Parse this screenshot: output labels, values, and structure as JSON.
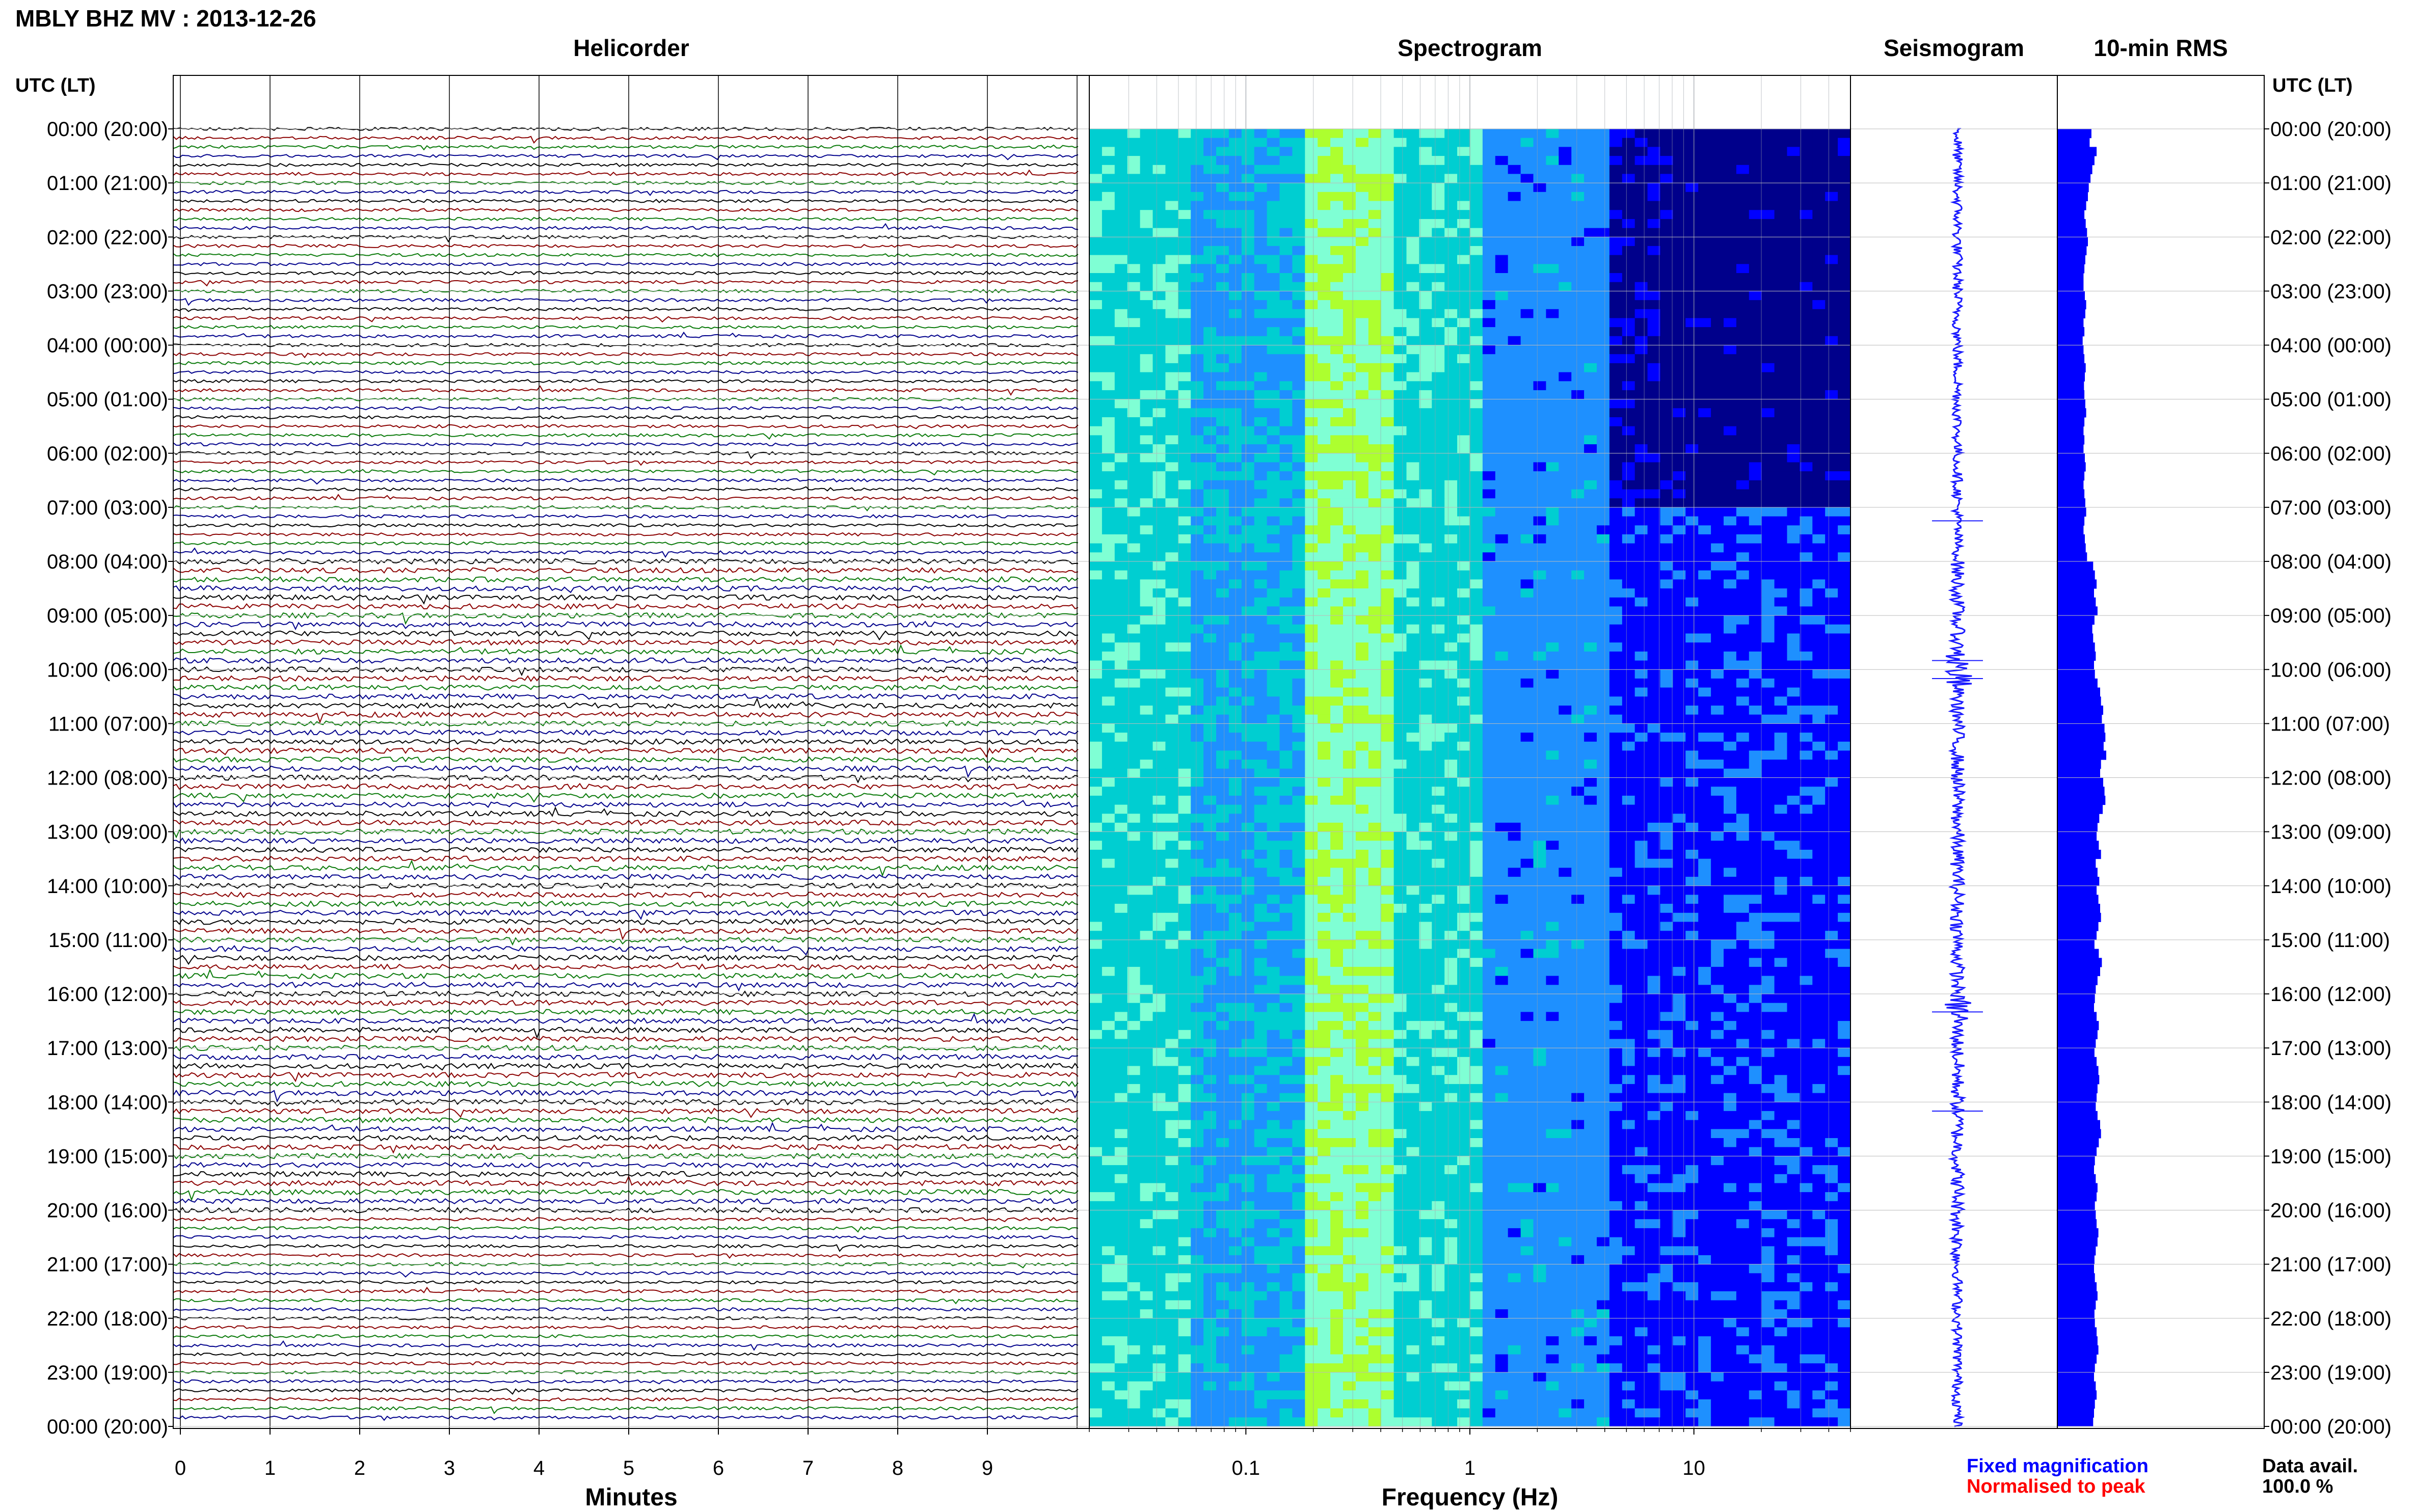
{
  "header": {
    "title": "MBLY BHZ MV : 2013-12-26",
    "utc_label_left": "UTC (LT)",
    "utc_label_right": "UTC (LT)"
  },
  "panels": {
    "helicorder_title": "Helicorder",
    "spectrogram_title": "Spectrogram",
    "seismogram_title": "Seismogram",
    "rms_title": "10-min RMS"
  },
  "legend": {
    "fixed": "Fixed magnification",
    "normalised": "Normalised to peak",
    "data_avail_label": "Data avail.",
    "data_avail_value": "100.0 %"
  },
  "colors": {
    "trace_cycle": [
      "#000000",
      "#8b0000",
      "#0a7a0a",
      "#00008b"
    ],
    "rms_bar": "#0000ff",
    "seismogram": "#1a1aff",
    "fixed_text": "#0000ff",
    "normalised_text": "#ff0000"
  },
  "chart_data": [
    {
      "type": "line",
      "name": "helicorder",
      "title": "Helicorder",
      "xlabel": "Minutes",
      "xlim": [
        0,
        10
      ],
      "x_ticks": [
        "0",
        "1",
        "2",
        "3",
        "4",
        "5",
        "6",
        "7",
        "8",
        "9"
      ],
      "y_labels": [
        "00:00 (20:00)",
        "01:00 (21:00)",
        "02:00 (22:00)",
        "03:00 (23:00)",
        "04:00 (00:00)",
        "05:00 (01:00)",
        "06:00 (02:00)",
        "07:00 (03:00)",
        "08:00 (04:00)",
        "09:00 (05:00)",
        "10:00 (06:00)",
        "11:00 (07:00)",
        "12:00 (08:00)",
        "13:00 (09:00)",
        "14:00 (10:00)",
        "15:00 (11:00)",
        "16:00 (12:00)",
        "17:00 (13:00)",
        "18:00 (14:00)",
        "19:00 (15:00)",
        "20:00 (16:00)",
        "21:00 (17:00)",
        "22:00 (18:00)",
        "23:00 (19:00)",
        "00:00 (20:00)"
      ],
      "ylim_hours": [
        0,
        24
      ],
      "lines_per_hour": 6
    },
    {
      "type": "heatmap",
      "name": "spectrogram",
      "title": "Spectrogram",
      "xlabel": "Frequency (Hz)",
      "x_scale": "log",
      "xlim": [
        0.02,
        50
      ],
      "x_ticks": [
        "0.1",
        "1",
        "10"
      ],
      "peak_band_hz": [
        0.18,
        0.4
      ],
      "quiet_period_utc": "00:00–07:00",
      "colormap": [
        "#00008b",
        "#0000ff",
        "#1e90ff",
        "#00ced1",
        "#7fffd4",
        "#adff2f"
      ]
    },
    {
      "type": "line",
      "name": "seismogram",
      "title": "Seismogram",
      "ylim_hours": [
        0,
        24
      ],
      "spikes_utc": [
        "07:15",
        "09:50",
        "10:10",
        "16:20",
        "18:10"
      ]
    },
    {
      "type": "bar",
      "name": "rms",
      "title": "10-min RMS",
      "orientation": "horizontal",
      "interval_minutes": 10,
      "values": [
        0.78,
        0.74,
        0.9,
        0.85,
        0.8,
        0.76,
        0.72,
        0.7,
        0.66,
        0.62,
        0.65,
        0.68,
        0.7,
        0.67,
        0.64,
        0.62,
        0.6,
        0.6,
        0.63,
        0.66,
        0.64,
        0.6,
        0.62,
        0.58,
        0.6,
        0.62,
        0.65,
        0.63,
        0.61,
        0.62,
        0.64,
        0.66,
        0.62,
        0.6,
        0.62,
        0.6,
        0.63,
        0.65,
        0.62,
        0.6,
        0.62,
        0.64,
        0.66,
        0.62,
        0.6,
        0.63,
        0.65,
        0.68,
        0.82,
        0.86,
        0.9,
        0.84,
        0.88,
        0.92,
        0.85,
        0.8,
        0.82,
        0.86,
        0.88,
        0.84,
        0.86,
        0.92,
        0.98,
        1.0,
        1.05,
        1.02,
        1.08,
        1.1,
        1.06,
        1.12,
        1.0,
        0.98,
        1.05,
        1.08,
        1.1,
        1.04,
        0.96,
        0.92,
        0.9,
        0.95,
        1.0,
        0.88,
        0.92,
        0.96,
        0.9,
        0.94,
        0.98,
        1.0,
        0.94,
        0.9,
        0.85,
        0.95,
        1.02,
        0.98,
        0.92,
        0.88,
        0.86,
        0.84,
        0.9,
        0.95,
        0.92,
        0.88,
        0.85,
        0.9,
        0.94,
        0.96,
        0.92,
        0.9,
        0.88,
        0.92,
        0.98,
        1.0,
        0.95,
        0.9,
        0.86,
        0.84,
        0.88,
        0.92,
        0.9,
        0.86,
        0.88,
        0.9,
        0.94,
        0.92,
        0.88,
        0.85,
        0.84,
        0.86,
        0.9,
        0.92,
        0.88,
        0.85,
        0.86,
        0.9,
        0.92,
        0.94,
        0.9,
        0.86,
        0.84,
        0.88,
        0.9,
        0.86,
        0.84,
        0.82
      ]
    }
  ]
}
